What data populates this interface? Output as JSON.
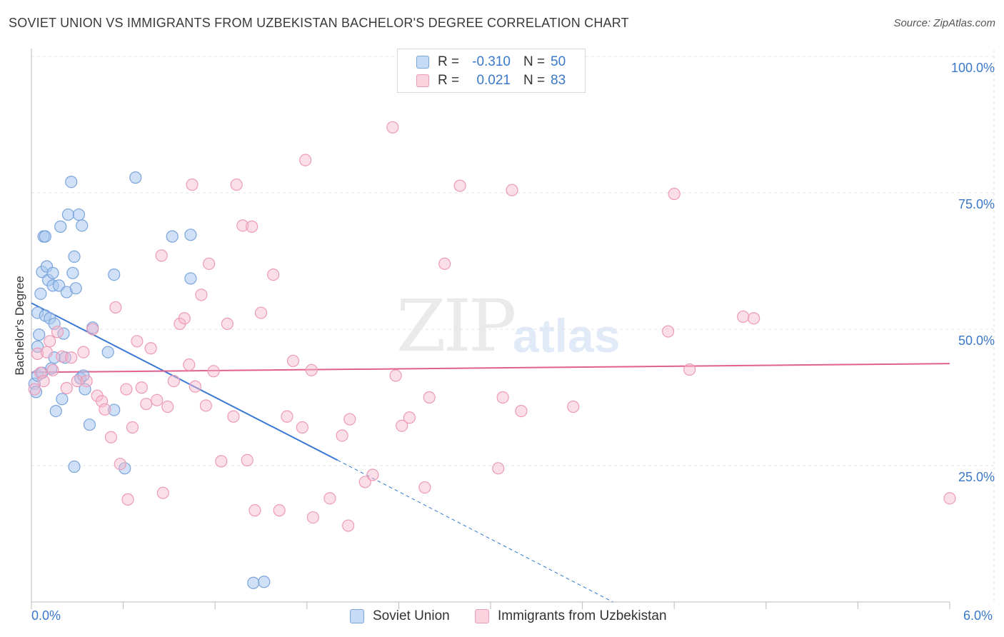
{
  "header": {
    "title": "SOVIET UNION VS IMMIGRANTS FROM UZBEKISTAN BACHELOR'S DEGREE CORRELATION CHART",
    "source": "Source: ZipAtlas.com"
  },
  "watermark": {
    "zip": "ZIP",
    "atlas": "atlas"
  },
  "legend_top": {
    "r_label": "R =",
    "n_label": "N =",
    "rows": [
      {
        "r": "-0.310",
        "n": "50",
        "color": "#aac8f0"
      },
      {
        "r": "0.021",
        "n": "83",
        "color": "#f6b8cc"
      }
    ]
  },
  "chart_data": {
    "type": "scatter",
    "title": "SOVIET UNION VS IMMIGRANTS FROM UZBEKISTAN BACHELOR'S DEGREE CORRELATION CHART",
    "xlabel": "",
    "ylabel": "Bachelor's Degree",
    "xlim": [
      0,
      6
    ],
    "ylim": [
      0,
      100
    ],
    "x_tick_labels": [
      "0.0%",
      "6.0%"
    ],
    "y_tick_labels": [
      {
        "value": 100,
        "label": "100.0%"
      },
      {
        "value": 75,
        "label": "75.0%"
      },
      {
        "value": 50,
        "label": "50.0%"
      },
      {
        "value": 25,
        "label": "25.0%"
      }
    ],
    "grid": true,
    "series": [
      {
        "name": "Soviet Union",
        "color": "#3a78d4",
        "fill": "rgba(170,200,240,0.55)",
        "stroke": "#7aa4dc",
        "trend": {
          "x0": 0.0,
          "y0": 54.8,
          "x1": 2.0,
          "y1": 26.0,
          "dash_to_x": 3.8,
          "dash_to_y": 0.0
        },
        "points": [
          [
            0.02,
            40.0
          ],
          [
            0.03,
            38.5
          ],
          [
            0.04,
            41.5
          ],
          [
            0.04,
            46.8
          ],
          [
            0.04,
            53.0
          ],
          [
            0.05,
            49.0
          ],
          [
            0.06,
            56.5
          ],
          [
            0.07,
            60.5
          ],
          [
            0.07,
            42.0
          ],
          [
            0.08,
            67.0
          ],
          [
            0.09,
            67.0
          ],
          [
            0.09,
            52.5
          ],
          [
            0.1,
            61.5
          ],
          [
            0.11,
            59.0
          ],
          [
            0.12,
            52.0
          ],
          [
            0.13,
            42.8
          ],
          [
            0.14,
            58.0
          ],
          [
            0.14,
            60.3
          ],
          [
            0.15,
            44.8
          ],
          [
            0.15,
            51.0
          ],
          [
            0.16,
            35.0
          ],
          [
            0.18,
            58.0
          ],
          [
            0.19,
            68.8
          ],
          [
            0.2,
            37.2
          ],
          [
            0.21,
            49.2
          ],
          [
            0.22,
            44.8
          ],
          [
            0.23,
            56.8
          ],
          [
            0.24,
            71.0
          ],
          [
            0.26,
            77.0
          ],
          [
            0.27,
            60.3
          ],
          [
            0.28,
            24.8
          ],
          [
            0.28,
            63.3
          ],
          [
            0.29,
            57.5
          ],
          [
            0.31,
            71.0
          ],
          [
            0.32,
            41.0
          ],
          [
            0.33,
            69.0
          ],
          [
            0.34,
            41.5
          ],
          [
            0.35,
            39.0
          ],
          [
            0.38,
            32.5
          ],
          [
            0.4,
            50.3
          ],
          [
            0.5,
            45.8
          ],
          [
            0.54,
            35.2
          ],
          [
            0.54,
            60.0
          ],
          [
            0.61,
            24.5
          ],
          [
            0.68,
            77.8
          ],
          [
            0.92,
            67.0
          ],
          [
            1.04,
            59.3
          ],
          [
            1.04,
            67.3
          ],
          [
            1.45,
            3.5
          ],
          [
            1.52,
            3.7
          ]
        ]
      },
      {
        "name": "Immigrants from Uzbekistan",
        "color": "#e06090",
        "fill": "rgba(246,184,204,0.45)",
        "stroke": "#ec9ab6",
        "trend": {
          "x0": 0.0,
          "y0": 42.1,
          "x1": 6.0,
          "y1": 43.7
        },
        "points": [
          [
            0.02,
            39.0
          ],
          [
            0.04,
            45.5
          ],
          [
            0.06,
            42.0
          ],
          [
            0.08,
            40.5
          ],
          [
            0.1,
            45.8
          ],
          [
            0.12,
            47.8
          ],
          [
            0.14,
            42.5
          ],
          [
            0.17,
            49.5
          ],
          [
            0.2,
            45.0
          ],
          [
            0.23,
            39.2
          ],
          [
            0.26,
            44.8
          ],
          [
            0.3,
            40.5
          ],
          [
            0.34,
            45.8
          ],
          [
            0.36,
            40.5
          ],
          [
            0.4,
            50.0
          ],
          [
            0.43,
            37.8
          ],
          [
            0.46,
            36.8
          ],
          [
            0.48,
            35.3
          ],
          [
            0.52,
            30.2
          ],
          [
            0.55,
            54.0
          ],
          [
            0.58,
            25.3
          ],
          [
            0.62,
            39.0
          ],
          [
            0.63,
            18.8
          ],
          [
            0.66,
            32.0
          ],
          [
            0.69,
            47.8
          ],
          [
            0.72,
            39.3
          ],
          [
            0.75,
            36.3
          ],
          [
            0.78,
            46.5
          ],
          [
            0.82,
            37.0
          ],
          [
            0.85,
            63.5
          ],
          [
            0.86,
            20.0
          ],
          [
            0.89,
            35.8
          ],
          [
            0.93,
            40.5
          ],
          [
            0.97,
            51.0
          ],
          [
            1.0,
            52.0
          ],
          [
            1.03,
            43.5
          ],
          [
            1.05,
            76.5
          ],
          [
            1.07,
            39.5
          ],
          [
            1.11,
            56.3
          ],
          [
            1.14,
            36.0
          ],
          [
            1.16,
            62.0
          ],
          [
            1.19,
            42.3
          ],
          [
            1.24,
            25.8
          ],
          [
            1.28,
            51.0
          ],
          [
            1.32,
            34.0
          ],
          [
            1.34,
            76.5
          ],
          [
            1.38,
            69.0
          ],
          [
            1.41,
            26.0
          ],
          [
            1.44,
            68.8
          ],
          [
            1.46,
            16.8
          ],
          [
            1.5,
            53.0
          ],
          [
            1.58,
            60.0
          ],
          [
            1.62,
            16.8
          ],
          [
            1.67,
            34.0
          ],
          [
            1.71,
            44.2
          ],
          [
            1.77,
            32.0
          ],
          [
            1.79,
            81.0
          ],
          [
            1.83,
            42.5
          ],
          [
            1.84,
            15.5
          ],
          [
            1.95,
            19.0
          ],
          [
            2.03,
            30.5
          ],
          [
            2.07,
            14.0
          ],
          [
            2.08,
            33.5
          ],
          [
            2.18,
            22.0
          ],
          [
            2.23,
            23.3
          ],
          [
            2.36,
            87.0
          ],
          [
            2.38,
            41.5
          ],
          [
            2.42,
            32.3
          ],
          [
            2.47,
            33.8
          ],
          [
            2.57,
            21.0
          ],
          [
            2.6,
            37.5
          ],
          [
            2.7,
            62.0
          ],
          [
            2.8,
            76.3
          ],
          [
            3.05,
            24.5
          ],
          [
            3.08,
            37.5
          ],
          [
            3.14,
            75.5
          ],
          [
            3.2,
            35.0
          ],
          [
            3.54,
            35.8
          ],
          [
            4.16,
            49.6
          ],
          [
            4.2,
            74.8
          ],
          [
            4.3,
            42.6
          ],
          [
            4.65,
            52.3
          ],
          [
            4.72,
            52.0
          ],
          [
            6.0,
            19.0
          ]
        ]
      }
    ]
  }
}
